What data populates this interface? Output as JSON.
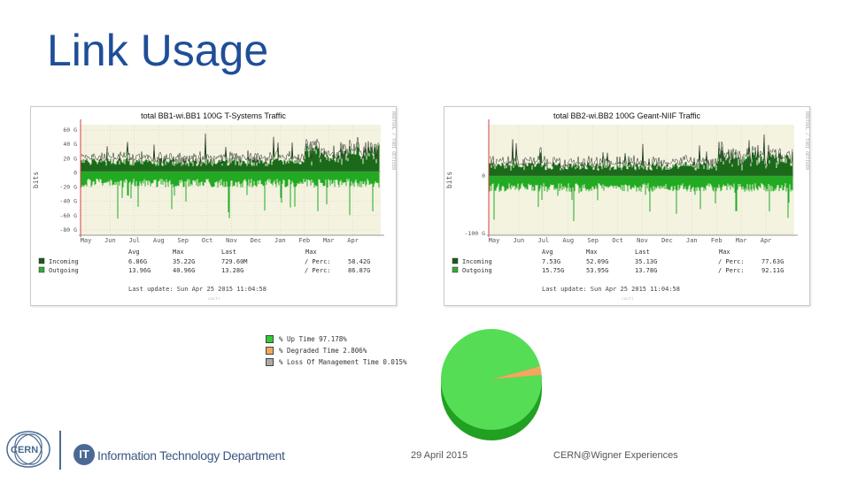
{
  "slide": {
    "title": "Link Usage",
    "footer_date": "29 April 2015",
    "footer_conference": "CERN@Wigner Experiences",
    "dept_badge": "IT",
    "dept_name": "Information Technology Department",
    "logo_text": "CERN"
  },
  "graph1": {
    "title": "total BB1-wi.BB1 100G T-Systems Traffic",
    "y_ticks": [
      "60 G",
      "40 G",
      "20 G",
      "0",
      "-20 G",
      "-40 G",
      "-60 G",
      "-80 G"
    ],
    "months": [
      "May",
      "Jun",
      "Jul",
      "Aug",
      "Sep",
      "Oct",
      "Nov",
      "Dec",
      "Jan",
      "Feb",
      "Mar",
      "Apr"
    ],
    "ylabel": "bits",
    "side_text": "RRDTOOL / TOBI OETIKER",
    "col_headers": [
      "Avg",
      "Max",
      "Last",
      "Max"
    ],
    "rows": [
      {
        "label": "Incoming",
        "avg": "6.86G",
        "max": "35.22G",
        "last": "729.60M",
        "pct_label": "/ Perc:",
        "pct": "58.42G",
        "color": "#1a5a1a"
      },
      {
        "label": "Outgoing",
        "avg": "13.96G",
        "max": "40.96G",
        "last": "13.28G",
        "pct_label": "/ Perc:",
        "pct": "86.87G",
        "color": "#33aa33"
      }
    ],
    "last_update": "Last update: Sun Apr 25 2015 11:04:58",
    "footer_small": "cacti"
  },
  "graph2": {
    "title": "total BB2-wi.BB2 100G Geant-NIIF Traffic",
    "y_ticks": [
      "0",
      "-100 G"
    ],
    "months": [
      "May",
      "Jun",
      "Jul",
      "Aug",
      "Sep",
      "Oct",
      "Nov",
      "Dec",
      "Jan",
      "Feb",
      "Mar",
      "Apr"
    ],
    "ylabel": "bits",
    "side_text": "RRDTOOL / TOBI OETIKER",
    "col_headers": [
      "Avg",
      "Max",
      "Last",
      "Max"
    ],
    "rows": [
      {
        "label": "Incoming",
        "avg": "7.53G",
        "max": "52.09G",
        "last": "35.13G",
        "pct_label": "/ Perc:",
        "pct": "77.63G",
        "color": "#1a5a1a"
      },
      {
        "label": "Outgoing",
        "avg": "15.75G",
        "max": "53.95G",
        "last": "13.78G",
        "pct_label": "/ Perc:",
        "pct": "92.11G",
        "color": "#33aa33"
      }
    ],
    "last_update": "Last update: Sun Apr 25 2015 11:04:58",
    "footer_small": "cacti"
  },
  "pie": {
    "legend": [
      {
        "label": "% Up Time 97.178%",
        "color": "#33cc33"
      },
      {
        "label": "% Degraded Time 2.806%",
        "color": "#f0a860"
      },
      {
        "label": "% Loss Of Management Time 0.015%",
        "color": "#aaaaaa"
      }
    ],
    "chart_data": {
      "type": "pie",
      "labels": [
        "Up Time",
        "Degraded Time",
        "Loss Of Management Time"
      ],
      "values": [
        97.178,
        2.806,
        0.015
      ],
      "colors": [
        "#55dd55",
        "#f0a860",
        "#aaaaaa"
      ]
    }
  }
}
